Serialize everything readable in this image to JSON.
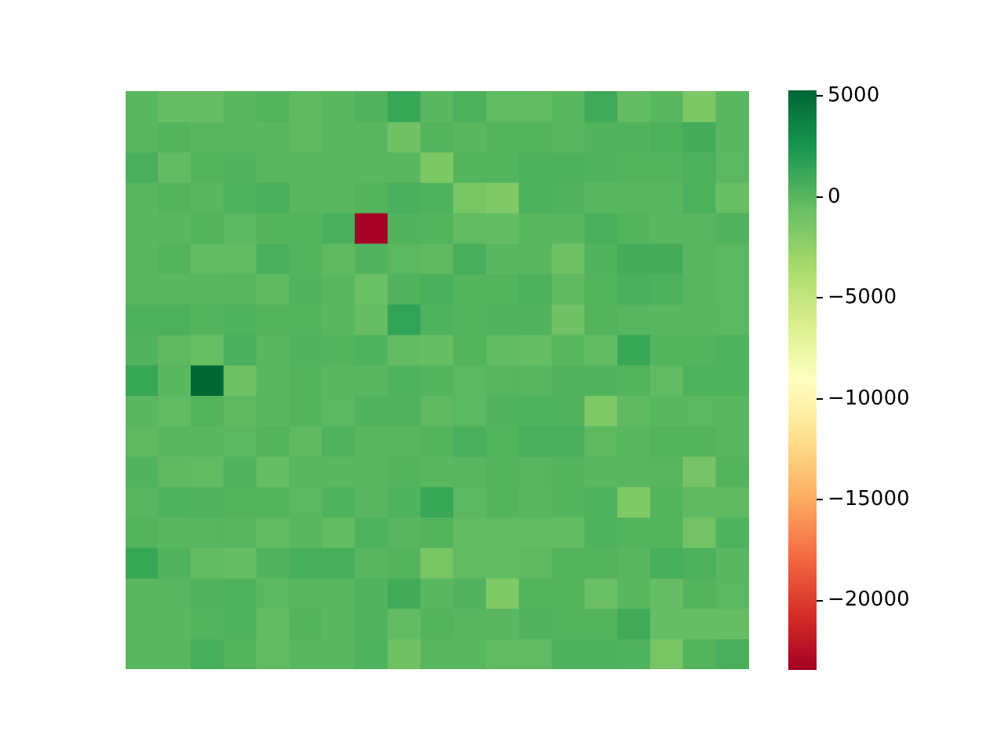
{
  "chart_data": {
    "type": "heatmap",
    "categories": [
      null,
      null,
      null,
      null,
      null,
      null,
      null,
      null,
      null,
      null,
      null,
      null,
      null,
      null,
      null,
      null,
      null,
      null,
      null
    ],
    "y_categories": [
      null,
      null,
      null,
      null,
      null,
      null,
      null,
      null,
      null,
      null,
      null,
      null,
      null,
      null,
      null,
      null,
      null,
      null,
      null
    ],
    "clim": [
      -23400,
      5250
    ],
    "cticks": [
      5000,
      0,
      {
        "value": -5000,
        "label": "−5000"
      },
      {
        "value": -10000,
        "label": "−10000"
      },
      {
        "value": -15000,
        "label": "−15000"
      },
      {
        "value": -20000,
        "label": "−20000"
      }
    ],
    "cells": [
      [
        0,
        -500,
        -500,
        0,
        200,
        -200,
        0,
        300,
        1200,
        0,
        500,
        -300,
        -300,
        0,
        1000,
        -400,
        0,
        -1500,
        0
      ],
      [
        0,
        200,
        0,
        0,
        0,
        -200,
        0,
        0,
        -900,
        200,
        0,
        200,
        200,
        0,
        300,
        300,
        500,
        800,
        0
      ],
      [
        600,
        -300,
        200,
        300,
        0,
        0,
        0,
        0,
        0,
        -1500,
        200,
        200,
        500,
        500,
        300,
        200,
        200,
        500,
        -100
      ],
      [
        0,
        200,
        0,
        400,
        600,
        0,
        0,
        200,
        600,
        400,
        -1300,
        -1700,
        500,
        300,
        0,
        0,
        0,
        500,
        -600
      ],
      [
        0,
        0,
        200,
        -100,
        200,
        200,
        600,
        -23400,
        300,
        200,
        -300,
        -400,
        0,
        0,
        600,
        200,
        0,
        100,
        300
      ],
      [
        0,
        200,
        -300,
        -300,
        600,
        200,
        -200,
        300,
        -100,
        -200,
        700,
        0,
        100,
        -900,
        300,
        800,
        800,
        100,
        -100
      ],
      [
        0,
        0,
        0,
        100,
        -200,
        300,
        0,
        -700,
        300,
        600,
        200,
        200,
        500,
        -200,
        200,
        600,
        500,
        100,
        -100
      ],
      [
        500,
        500,
        200,
        400,
        200,
        200,
        0,
        -500,
        1500,
        400,
        200,
        300,
        300,
        -900,
        200,
        100,
        0,
        0,
        -100
      ],
      [
        300,
        -200,
        -600,
        600,
        0,
        300,
        200,
        400,
        -400,
        -500,
        200,
        -300,
        -500,
        0,
        -400,
        1200,
        200,
        200,
        400
      ],
      [
        1300,
        0,
        5250,
        -900,
        0,
        200,
        0,
        0,
        400,
        200,
        -100,
        100,
        100,
        300,
        300,
        200,
        -300,
        400,
        400
      ],
      [
        0,
        -300,
        200,
        -200,
        0,
        200,
        -100,
        300,
        300,
        -200,
        -100,
        300,
        400,
        300,
        -1600,
        -200,
        0,
        -100,
        0
      ],
      [
        -200,
        100,
        0,
        -100,
        200,
        -200,
        300,
        0,
        0,
        200,
        600,
        200,
        600,
        600,
        -200,
        0,
        200,
        200,
        0
      ],
      [
        300,
        -200,
        -300,
        300,
        -500,
        100,
        0,
        0,
        200,
        0,
        100,
        200,
        100,
        200,
        0,
        100,
        100,
        -1200,
        200
      ],
      [
        100,
        400,
        300,
        200,
        200,
        -100,
        400,
        100,
        400,
        1200,
        -100,
        200,
        0,
        200,
        400,
        -1600,
        200,
        -200,
        -200
      ],
      [
        200,
        0,
        100,
        100,
        -300,
        0,
        -400,
        400,
        100,
        200,
        -300,
        -300,
        -300,
        -400,
        400,
        200,
        200,
        -1000,
        400
      ],
      [
        1300,
        300,
        -400,
        -500,
        300,
        700,
        700,
        100,
        200,
        -1300,
        -300,
        -300,
        -200,
        200,
        200,
        100,
        700,
        500,
        0
      ],
      [
        0,
        100,
        300,
        400,
        -100,
        0,
        0,
        300,
        900,
        0,
        300,
        -1600,
        200,
        200,
        -700,
        0,
        -500,
        200,
        -100
      ],
      [
        0,
        0,
        200,
        400,
        -400,
        200,
        0,
        300,
        -300,
        200,
        100,
        0,
        300,
        200,
        200,
        900,
        -500,
        -500,
        -500
      ],
      [
        0,
        0,
        700,
        200,
        -300,
        0,
        0,
        400,
        -900,
        0,
        0,
        -300,
        -300,
        500,
        500,
        400,
        -1300,
        200,
        600
      ]
    ]
  }
}
